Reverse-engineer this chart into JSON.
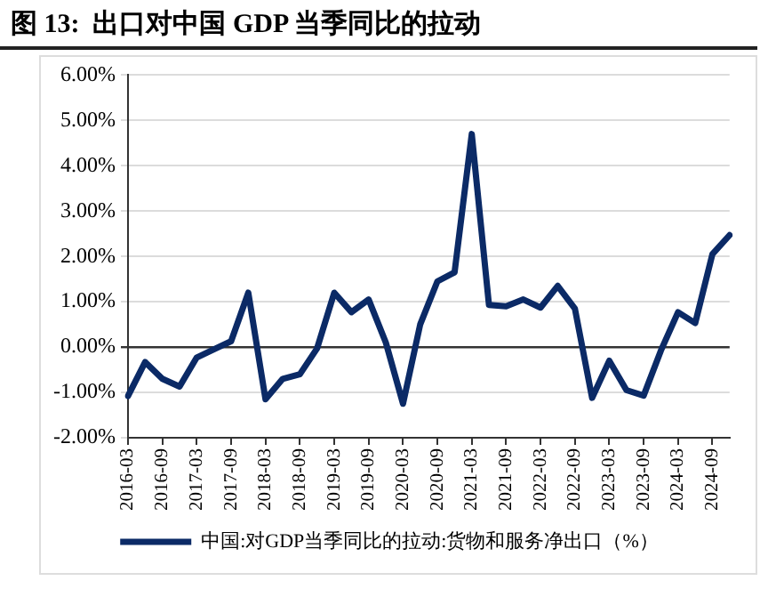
{
  "chart_data": {
    "type": "line",
    "title": "图 13:  出口对中国 GDP 当季同比的拉动",
    "categories": [
      "2016-03",
      null,
      "2016-09",
      null,
      "2017-03",
      null,
      "2017-09",
      null,
      "2018-03",
      null,
      "2018-09",
      null,
      "2019-03",
      null,
      "2019-09",
      null,
      "2020-03",
      null,
      "2020-09",
      null,
      "2021-03",
      null,
      "2021-09",
      null,
      "2022-03",
      null,
      "2022-09",
      null,
      "2023-03",
      null,
      "2023-09",
      null,
      "2024-03",
      null,
      "2024-09",
      null
    ],
    "series": [
      {
        "name": "中国:对GDP当季同比的拉动:货物和服务净出口（%）",
        "color": "#0b2a66",
        "values": [
          -1.08,
          -0.33,
          -0.7,
          -0.87,
          -0.23,
          -0.05,
          0.13,
          1.2,
          -1.15,
          -0.7,
          -0.6,
          -0.03,
          1.2,
          0.77,
          1.05,
          0.1,
          -1.25,
          0.5,
          1.45,
          1.65,
          4.7,
          0.93,
          0.9,
          1.05,
          0.87,
          1.35,
          0.85,
          -1.12,
          -0.3,
          -0.95,
          -1.07,
          -0.08,
          0.77,
          0.53,
          2.05,
          2.47
        ]
      }
    ],
    "ylim": [
      -2,
      6
    ],
    "yticks": [
      {
        "value": -2,
        "label": "-2.00%"
      },
      {
        "value": -1,
        "label": "-1.00%"
      },
      {
        "value": 0,
        "label": "0.00%"
      },
      {
        "value": 1,
        "label": "1.00%"
      },
      {
        "value": 2,
        "label": "2.00%"
      },
      {
        "value": 3,
        "label": "3.00%"
      },
      {
        "value": 4,
        "label": "4.00%"
      },
      {
        "value": 5,
        "label": "5.00%"
      },
      {
        "value": 6,
        "label": "6.00%"
      }
    ],
    "grid": "y",
    "legend": "bottom",
    "marker": "none",
    "line_style": "solid"
  }
}
